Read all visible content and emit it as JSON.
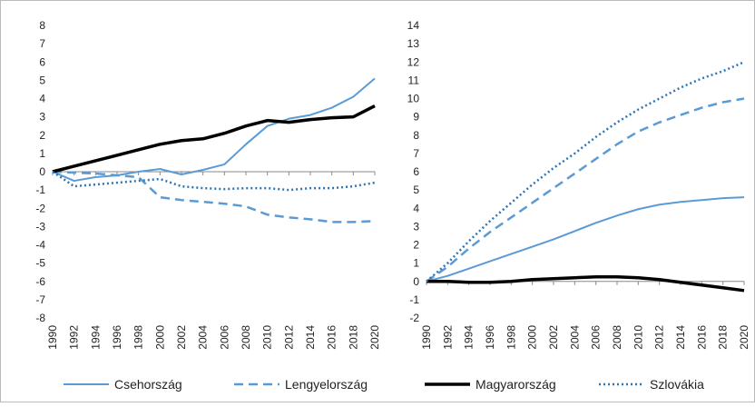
{
  "chart_data": [
    {
      "type": "line",
      "x": [
        1990,
        1992,
        1994,
        1996,
        1998,
        2000,
        2002,
        2004,
        2006,
        2008,
        2010,
        2012,
        2014,
        2016,
        2018,
        2020
      ],
      "xlim": [
        1990,
        2020
      ],
      "xticks": [
        1990,
        1992,
        1994,
        1996,
        1998,
        2000,
        2002,
        2004,
        2006,
        2008,
        2010,
        2012,
        2014,
        2016,
        2018,
        2020
      ],
      "ylim": [
        -8,
        8
      ],
      "yticks": [
        -8,
        -7,
        -6,
        -5,
        -4,
        -3,
        -2,
        -1,
        0,
        1,
        2,
        3,
        4,
        5,
        6,
        7,
        8
      ],
      "series": [
        {
          "name": "Csehország",
          "color": "#5b9bd5",
          "style": "solid",
          "values": [
            0,
            -0.5,
            -0.3,
            -0.2,
            0,
            0.15,
            -0.15,
            0.1,
            0.4,
            1.5,
            2.5,
            2.9,
            3.1,
            3.5,
            4.1,
            5.1
          ]
        },
        {
          "name": "Lengyelország",
          "color": "#5b9bd5",
          "style": "dashed",
          "values": [
            0,
            -0.05,
            -0.1,
            -0.2,
            -0.3,
            -1.4,
            -1.55,
            -1.65,
            -1.75,
            -1.9,
            -2.35,
            -2.5,
            -2.6,
            -2.75,
            -2.75,
            -2.7
          ]
        },
        {
          "name": "Magyarország",
          "color": "#000000",
          "style": "bold",
          "values": [
            0,
            0.3,
            0.6,
            0.9,
            1.2,
            1.5,
            1.7,
            1.8,
            2.1,
            2.5,
            2.8,
            2.7,
            2.85,
            2.95,
            3.0,
            3.6
          ]
        },
        {
          "name": "Szlovákia",
          "color": "#2e75b6",
          "style": "dotted",
          "values": [
            0,
            -0.8,
            -0.7,
            -0.6,
            -0.5,
            -0.4,
            -0.8,
            -0.9,
            -0.95,
            -0.9,
            -0.9,
            -1.0,
            -0.9,
            -0.9,
            -0.8,
            -0.6
          ]
        }
      ]
    },
    {
      "type": "line",
      "x": [
        1990,
        1992,
        1994,
        1996,
        1998,
        2000,
        2002,
        2004,
        2006,
        2008,
        2010,
        2012,
        2014,
        2016,
        2018,
        2020
      ],
      "xlim": [
        1990,
        2020
      ],
      "xticks": [
        1990,
        1992,
        1994,
        1996,
        1998,
        2000,
        2002,
        2004,
        2006,
        2008,
        2010,
        2012,
        2014,
        2016,
        2018,
        2020
      ],
      "ylim": [
        -2,
        14
      ],
      "yticks": [
        -2,
        -1,
        0,
        1,
        2,
        3,
        4,
        5,
        6,
        7,
        8,
        9,
        10,
        11,
        12,
        13,
        14
      ],
      "series": [
        {
          "color": "#5b9bd5",
          "style": "solid",
          "values": [
            0,
            0.3,
            0.7,
            1.1,
            1.5,
            1.9,
            2.3,
            2.75,
            3.2,
            3.6,
            3.95,
            4.2,
            4.35,
            4.45,
            4.55,
            4.6
          ]
        },
        {
          "color": "#5b9bd5",
          "style": "dashed",
          "values": [
            0,
            0.8,
            1.8,
            2.7,
            3.5,
            4.3,
            5.1,
            5.9,
            6.7,
            7.5,
            8.2,
            8.7,
            9.1,
            9.5,
            9.8,
            10.0
          ]
        },
        {
          "color": "#000000",
          "style": "bold",
          "values": [
            0,
            0,
            -0.05,
            -0.05,
            0,
            0.1,
            0.15,
            0.2,
            0.25,
            0.25,
            0.2,
            0.1,
            -0.05,
            -0.2,
            -0.35,
            -0.5
          ]
        },
        {
          "color": "#2e75b6",
          "style": "dotted",
          "values": [
            0,
            1,
            2.2,
            3.3,
            4.3,
            5.3,
            6.2,
            7,
            7.9,
            8.7,
            9.4,
            10,
            10.6,
            11.1,
            11.5,
            12
          ]
        }
      ]
    }
  ]
}
